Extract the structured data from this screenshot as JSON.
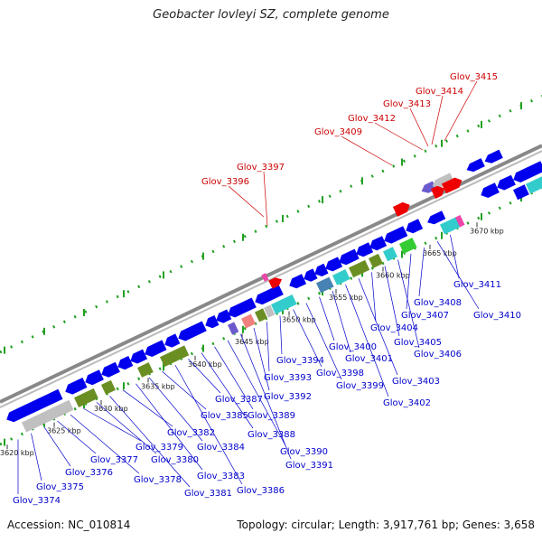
{
  "title": "Geobacter lovleyi SZ, complete genome",
  "footer": {
    "accession": "Accession: NC_010814",
    "summary": "Topology: circular; Length: 3,917,761 bp; Genes: 3,658"
  },
  "colors": {
    "backbone": "#888888",
    "dots": "#22a022",
    "blue_gene": "#0000ee",
    "red_gene": "#ee0000",
    "olive": "#6b8e23",
    "gray": "#c0c0c0",
    "cyan": "#33cccc",
    "steel": "#4682b4",
    "green": "#33cc33",
    "salmon": "#f08080",
    "purple": "#6a5acd",
    "magenta": "#ee44aa",
    "label_blue": "#0000cc",
    "label_red": "#cc0000"
  },
  "tick_labels": [
    "3620 kbp",
    "3625 kbp",
    "3630 kbp",
    "3635 kbp",
    "3640 kbp",
    "3645 kbp",
    "3650 kbp",
    "3655 kbp",
    "3660 kbp",
    "3665 kbp",
    "3670 kbp"
  ],
  "top_labels": [
    "Glov_3396",
    "Glov_3397",
    "Glov_3409",
    "Glov_3412",
    "Glov_3413",
    "Glov_3414",
    "Glov_3415"
  ],
  "bottom_labels": [
    "Glov_3374",
    "Glov_3375",
    "Glov_3376",
    "Glov_3377",
    "Glov_3378",
    "Glov_3379",
    "Glov_3380",
    "Glov_3381",
    "Glov_3382",
    "Glov_3383",
    "Glov_3384",
    "Glov_3385",
    "Glov_3386",
    "Glov_3387",
    "Glov_3388",
    "Glov_3389",
    "Glov_3390",
    "Glov_3391",
    "Glov_3392",
    "Glov_3393",
    "Glov_3394",
    "Glov_3398",
    "Glov_3399",
    "Glov_3400",
    "Glov_3401",
    "Glov_3402",
    "Glov_3403",
    "Glov_3404",
    "Glov_3405",
    "Glov_3406",
    "Glov_3407",
    "Glov_3408",
    "Glov_3410",
    "Glov_3411"
  ]
}
